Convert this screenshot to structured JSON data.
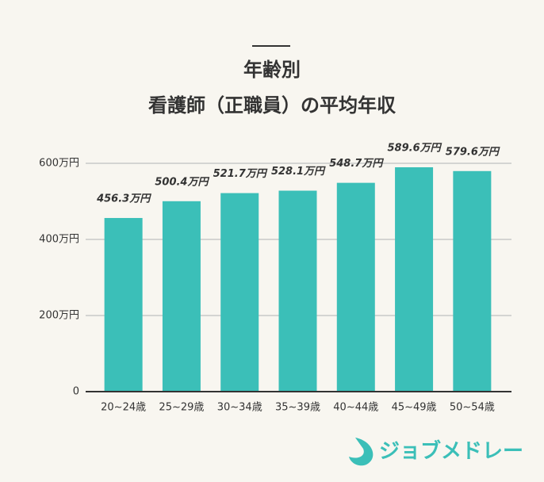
{
  "chart_data": {
    "type": "bar",
    "title_lines": [
      "年齢別",
      "看護師（正職員）の平均年収"
    ],
    "categories": [
      "20~24歳",
      "25~29歳",
      "30~34歳",
      "35~39歳",
      "40~44歳",
      "45~49歳",
      "50~54歳"
    ],
    "values": [
      456.3,
      500.4,
      521.7,
      528.1,
      548.7,
      589.6,
      579.6
    ],
    "value_labels": [
      "456.3万円",
      "500.4万円",
      "521.7万円",
      "528.1万円",
      "548.7万円",
      "589.6万円",
      "579.6万円"
    ],
    "color": "#3bbfb8",
    "ylim": [
      0,
      600
    ],
    "yticks": [
      0,
      {
        "value": 200,
        "label": "200万円"
      },
      {
        "value": 400,
        "label": "400万円"
      },
      {
        "value": 600,
        "label": "600万円"
      }
    ],
    "grid": true
  },
  "brand": "ジョブメドレー"
}
